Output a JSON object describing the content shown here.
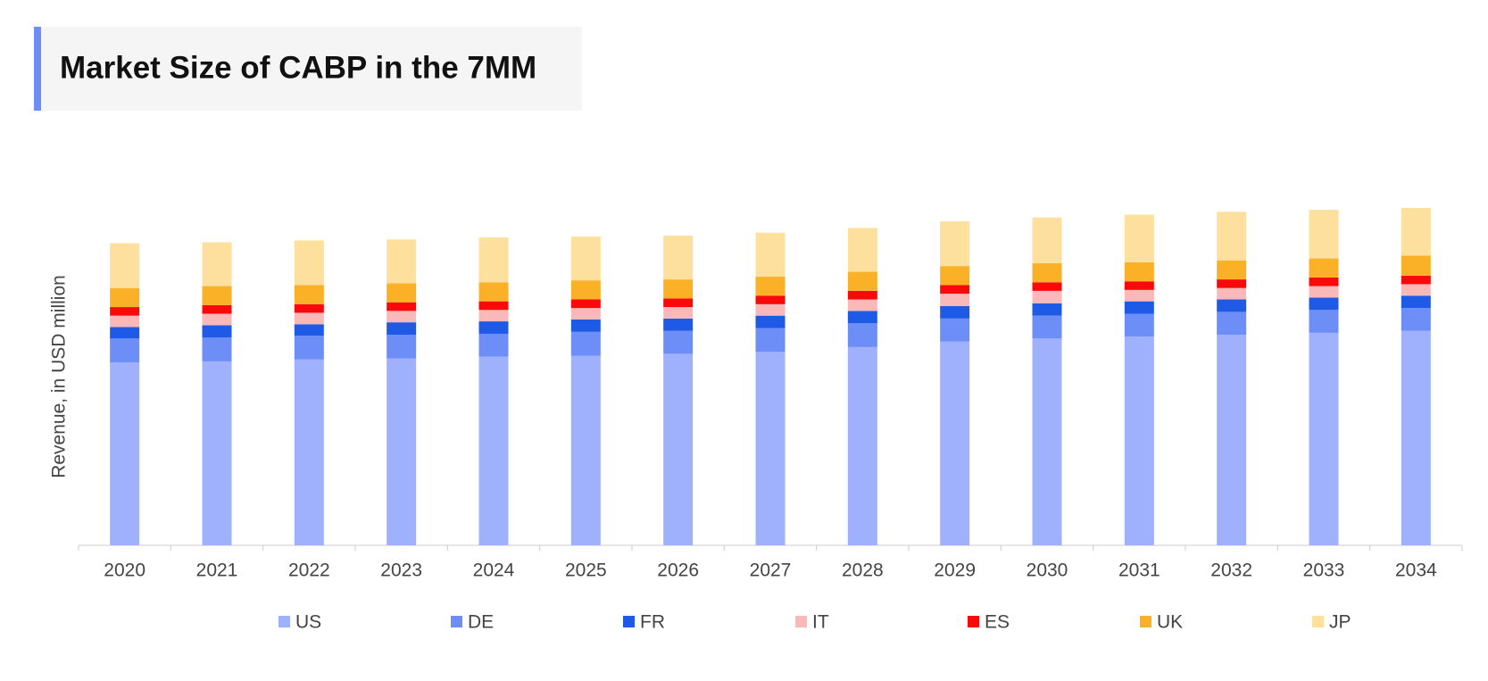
{
  "chart_data": {
    "type": "bar",
    "stacked": true,
    "title": "Market Size of CABP in the 7MM",
    "y_label": "Revenue, in USD million",
    "categories": [
      "2020",
      "2021",
      "2022",
      "2023",
      "2024",
      "2025",
      "2026",
      "2027",
      "2028",
      "2029",
      "2030",
      "2031",
      "2032",
      "2033",
      "2034"
    ],
    "series": [
      {
        "name": "US",
        "color": "#9fb1fd",
        "values": [
          192,
          193,
          195,
          196,
          198,
          199,
          201,
          203,
          208,
          214,
          217,
          219,
          221,
          223,
          225
        ]
      },
      {
        "name": "DE",
        "color": "#6d8ef7",
        "values": [
          25,
          25,
          25,
          25,
          24,
          25,
          24,
          25,
          25,
          24,
          24,
          24,
          24,
          24,
          24
        ]
      },
      {
        "name": "FR",
        "color": "#1f5ae6",
        "values": [
          12,
          13,
          12,
          13,
          13,
          13,
          13,
          13,
          13,
          13,
          13,
          13,
          13,
          13,
          13
        ]
      },
      {
        "name": "IT",
        "color": "#fbb8b8",
        "values": [
          12,
          12,
          12,
          12,
          12,
          12,
          12,
          12,
          12,
          13,
          13,
          12,
          12,
          12,
          12
        ]
      },
      {
        "name": "ES",
        "color": "#f80a0a",
        "values": [
          9,
          9,
          9,
          9,
          9,
          9,
          9,
          9,
          9,
          9,
          9,
          9,
          9,
          9,
          9
        ]
      },
      {
        "name": "UK",
        "color": "#fbb127",
        "values": [
          20,
          20,
          20,
          20,
          20,
          20,
          20,
          20,
          20,
          20,
          20,
          20,
          20,
          20,
          21
        ]
      },
      {
        "name": "JP",
        "color": "#fde09e",
        "values": [
          47,
          46,
          47,
          46,
          47,
          46,
          46,
          46,
          46,
          47,
          48,
          50,
          51,
          51,
          50
        ]
      }
    ]
  }
}
